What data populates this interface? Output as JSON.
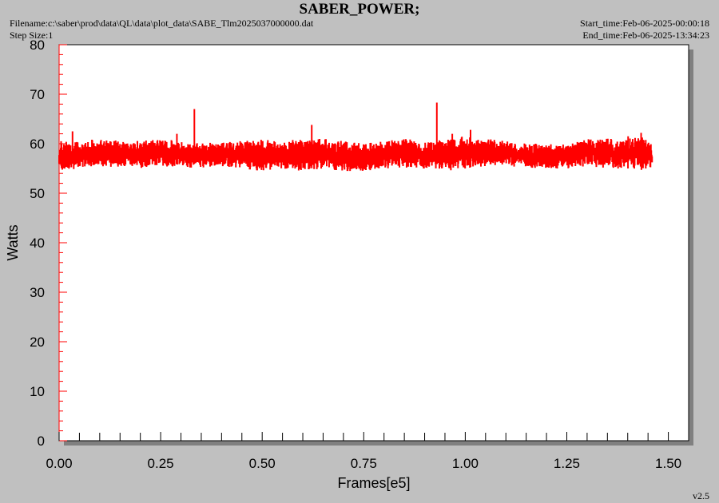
{
  "header": {
    "filename": "Filename:c:\\saber\\prod\\data\\QL\\data\\plot_data\\SABE_Tlm2025037000000.dat",
    "step_size": "Step Size:1",
    "start_time": "Start_time:Feb-06-2025-00:00:18",
    "end_time": "End_time:Feb-06-2025-13:34:23"
  },
  "footer": {
    "version": "v2.5"
  },
  "chart_data": {
    "type": "line",
    "title": "SABER_POWER;",
    "xlabel": "Frames[e5]",
    "ylabel": "Watts",
    "xlim": [
      0,
      1.55
    ],
    "ylim": [
      0,
      80
    ],
    "xticks": [
      "0.00",
      "0.25",
      "0.50",
      "0.75",
      "1.00",
      "1.25",
      "1.50"
    ],
    "yticks": [
      "0",
      "10",
      "20",
      "30",
      "40",
      "50",
      "60",
      "70",
      "80"
    ],
    "grid": false,
    "series_color": "#ff0000",
    "series": [
      {
        "x": [
          0.0,
          0.05,
          0.1,
          0.15,
          0.2,
          0.25,
          0.3,
          0.35,
          0.4,
          0.45,
          0.5,
          0.55,
          0.6,
          0.65,
          0.7,
          0.75,
          0.8,
          0.85,
          0.9,
          0.95,
          1.0,
          1.05,
          1.1,
          1.15,
          1.2,
          1.25,
          1.3,
          1.35,
          1.4,
          1.45,
          1.46
        ],
        "y_min": [
          54.5,
          55.0,
          55.5,
          55.2,
          55.0,
          55.5,
          55.2,
          55.0,
          55.5,
          55.0,
          54.5,
          55.0,
          54.5,
          55.0,
          54.5,
          54.5,
          55.0,
          55.2,
          55.0,
          54.5,
          55.0,
          55.5,
          55.5,
          55.2,
          55.0,
          55.0,
          55.5,
          55.0,
          55.0,
          54.5,
          54.5
        ],
        "y_max": [
          60.5,
          60.5,
          61.0,
          60.8,
          60.5,
          61.0,
          60.5,
          60.0,
          60.5,
          60.5,
          60.8,
          60.5,
          61.0,
          61.0,
          60.5,
          60.0,
          60.5,
          61.0,
          60.5,
          61.0,
          61.5,
          61.0,
          60.5,
          60.0,
          60.0,
          60.0,
          61.0,
          61.0,
          61.0,
          61.5,
          60.5
        ]
      }
    ],
    "spikes": [
      {
        "x": 0.033,
        "y": 62.5
      },
      {
        "x": 0.29,
        "y": 62.0
      },
      {
        "x": 0.333,
        "y": 67.0
      },
      {
        "x": 0.622,
        "y": 63.8
      },
      {
        "x": 0.93,
        "y": 68.3
      },
      {
        "x": 0.968,
        "y": 62.0
      },
      {
        "x": 1.013,
        "y": 62.8
      },
      {
        "x": 1.401,
        "y": 61.5
      },
      {
        "x": 1.433,
        "y": 62.2
      }
    ]
  }
}
